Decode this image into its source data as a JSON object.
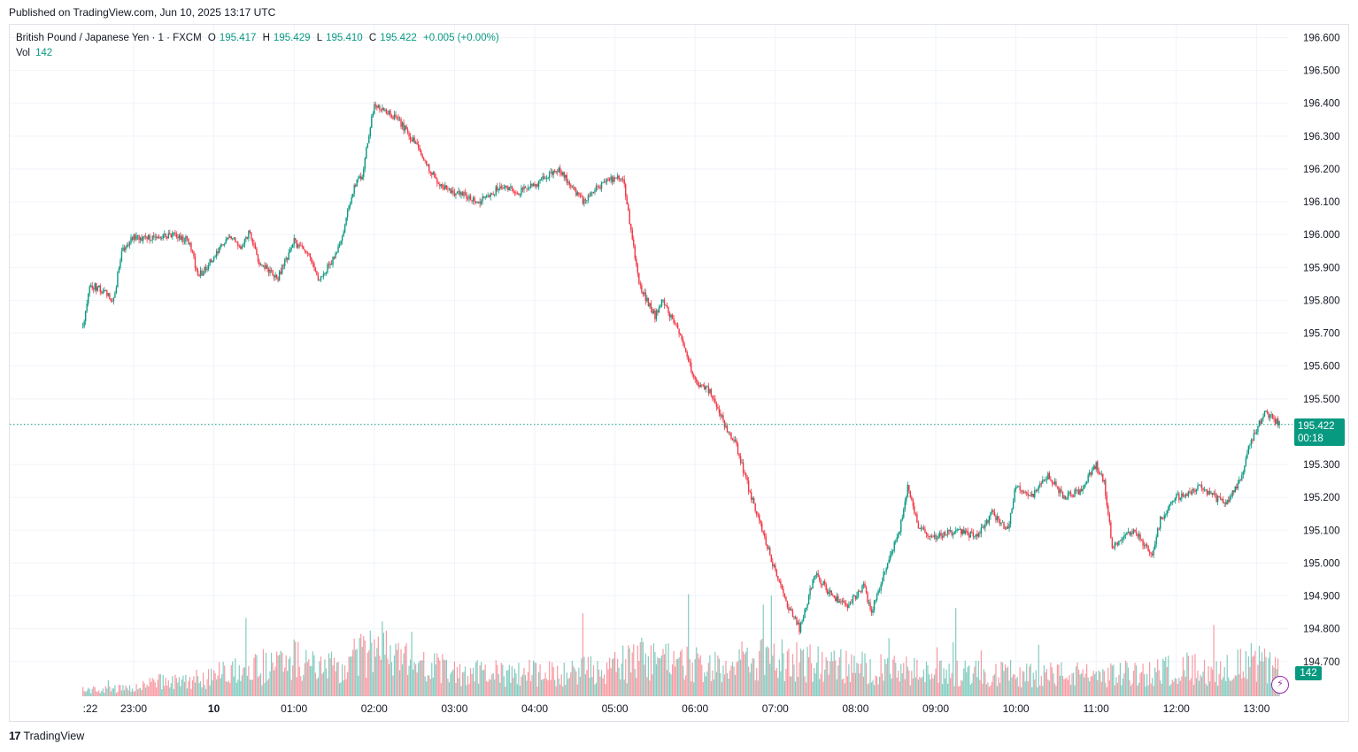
{
  "header": {
    "published": "Published on TradingView.com, Jun 10, 2025 13:17 UTC"
  },
  "legend": {
    "symbol": "British Pound / Japanese Yen · 1 · FXCM",
    "o_label": "O",
    "o_value": "195.417",
    "h_label": "H",
    "h_value": "195.429",
    "l_label": "L",
    "l_value": "195.410",
    "c_label": "C",
    "c_value": "195.422",
    "change": "+0.005 (+0.00%)",
    "vol_label": "Vol",
    "vol_value": "142"
  },
  "price_tag": {
    "price": "195.422",
    "countdown": "00:18"
  },
  "volume_tag": {
    "value": "142"
  },
  "footer": {
    "brand_mark": "17",
    "brand": "TradingView"
  },
  "colors": {
    "up": "#089981",
    "down": "#f23645",
    "grid": "#f0f3fa",
    "text": "#131722"
  },
  "chart_data": {
    "type": "candlestick",
    "title": "British Pound / Japanese Yen · 1 · FXCM",
    "y_ticks": [
      "196.600",
      "196.500",
      "196.400",
      "196.300",
      "196.200",
      "196.100",
      "196.000",
      "195.900",
      "195.800",
      "195.700",
      "195.600",
      "195.500",
      "195.300",
      "195.200",
      "195.100",
      "195.000",
      "194.900",
      "194.800",
      "194.700"
    ],
    "ylim": [
      194.6,
      196.6
    ],
    "x_ticks": [
      ":22",
      "23:00",
      "10",
      "01:00",
      "02:00",
      "03:00",
      "04:00",
      "05:00",
      "06:00",
      "07:00",
      "08:00",
      "09:00",
      "10:00",
      "11:00",
      "12:00",
      "13:00"
    ],
    "x_tick_hours": [
      22.367,
      23.0,
      24.0,
      25.0,
      26.0,
      27.0,
      28.0,
      29.0,
      30.0,
      31.0,
      32.0,
      33.0,
      34.0,
      35.0,
      36.0,
      37.0
    ],
    "last_price": 195.422,
    "price_path": [
      [
        22.367,
        195.72
      ],
      [
        22.45,
        195.85
      ],
      [
        22.6,
        195.83
      ],
      [
        22.75,
        195.8
      ],
      [
        22.85,
        195.95
      ],
      [
        23.0,
        195.99
      ],
      [
        23.3,
        195.99
      ],
      [
        23.5,
        196.0
      ],
      [
        23.7,
        195.98
      ],
      [
        23.8,
        195.87
      ],
      [
        24.0,
        195.93
      ],
      [
        24.2,
        196.0
      ],
      [
        24.35,
        195.96
      ],
      [
        24.45,
        196.01
      ],
      [
        24.55,
        195.92
      ],
      [
        24.8,
        195.87
      ],
      [
        25.0,
        195.98
      ],
      [
        25.2,
        195.93
      ],
      [
        25.3,
        195.86
      ],
      [
        25.5,
        195.93
      ],
      [
        25.6,
        196.0
      ],
      [
        25.75,
        196.15
      ],
      [
        25.85,
        196.18
      ],
      [
        26.0,
        196.4
      ],
      [
        26.3,
        196.35
      ],
      [
        26.5,
        196.28
      ],
      [
        26.8,
        196.15
      ],
      [
        27.3,
        196.1
      ],
      [
        27.6,
        196.15
      ],
      [
        27.8,
        196.13
      ],
      [
        28.0,
        196.15
      ],
      [
        28.3,
        196.2
      ],
      [
        28.6,
        196.1
      ],
      [
        28.9,
        196.17
      ],
      [
        29.1,
        196.17
      ],
      [
        29.3,
        195.85
      ],
      [
        29.5,
        195.75
      ],
      [
        29.6,
        195.8
      ],
      [
        29.8,
        195.7
      ],
      [
        30.0,
        195.55
      ],
      [
        30.2,
        195.52
      ],
      [
        30.4,
        195.4
      ],
      [
        30.5,
        195.37
      ],
      [
        30.7,
        195.2
      ],
      [
        30.9,
        195.05
      ],
      [
        31.1,
        194.9
      ],
      [
        31.3,
        194.8
      ],
      [
        31.5,
        194.97
      ],
      [
        31.7,
        194.9
      ],
      [
        31.9,
        194.87
      ],
      [
        32.1,
        194.93
      ],
      [
        32.2,
        194.85
      ],
      [
        32.4,
        195.0
      ],
      [
        32.55,
        195.1
      ],
      [
        32.65,
        195.23
      ],
      [
        32.8,
        195.1
      ],
      [
        33.0,
        195.08
      ],
      [
        33.3,
        195.1
      ],
      [
        33.5,
        195.08
      ],
      [
        33.7,
        195.15
      ],
      [
        33.9,
        195.1
      ],
      [
        34.0,
        195.24
      ],
      [
        34.2,
        195.2
      ],
      [
        34.4,
        195.27
      ],
      [
        34.6,
        195.2
      ],
      [
        34.8,
        195.22
      ],
      [
        35.0,
        195.3
      ],
      [
        35.1,
        195.25
      ],
      [
        35.2,
        195.05
      ],
      [
        35.35,
        195.08
      ],
      [
        35.5,
        195.1
      ],
      [
        35.6,
        195.05
      ],
      [
        35.7,
        195.03
      ],
      [
        35.8,
        195.13
      ],
      [
        36.0,
        195.2
      ],
      [
        36.3,
        195.23
      ],
      [
        36.6,
        195.18
      ],
      [
        36.8,
        195.25
      ],
      [
        36.9,
        195.35
      ],
      [
        37.1,
        195.46
      ],
      [
        37.3,
        195.42
      ]
    ],
    "volume_ylim": [
      0,
      200
    ],
    "volume_profile": [
      [
        22.367,
        8
      ],
      [
        23.0,
        10
      ],
      [
        23.3,
        20
      ],
      [
        24.0,
        25
      ],
      [
        24.2,
        35
      ],
      [
        24.6,
        35
      ],
      [
        25.0,
        50
      ],
      [
        25.3,
        35
      ],
      [
        25.6,
        40
      ],
      [
        26.0,
        60
      ],
      [
        26.4,
        45
      ],
      [
        26.8,
        35
      ],
      [
        27.5,
        30
      ],
      [
        28.3,
        30
      ],
      [
        28.9,
        35
      ],
      [
        29.5,
        55
      ],
      [
        29.8,
        45
      ],
      [
        30.2,
        40
      ],
      [
        30.8,
        50
      ],
      [
        31.3,
        45
      ],
      [
        31.8,
        40
      ],
      [
        32.3,
        35
      ],
      [
        33.0,
        30
      ],
      [
        34.0,
        30
      ],
      [
        35.0,
        28
      ],
      [
        35.5,
        30
      ],
      [
        36.0,
        35
      ],
      [
        36.5,
        35
      ],
      [
        37.0,
        45
      ],
      [
        37.3,
        30
      ]
    ],
    "grid": true
  }
}
